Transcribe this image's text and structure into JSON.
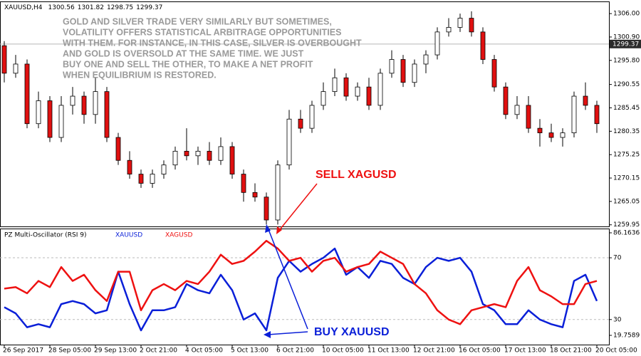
{
  "chart_data": [
    {
      "type": "candlestick",
      "symbol": "XAUUSD,H4",
      "ohlc_header": [
        1300.56,
        1301.82,
        1298.75,
        1299.37
      ],
      "current_price": 1299.37,
      "annotation_lines": [
        "GOLD AND SILVER TRADE VERY SIMILARLY BUT SOMETIMES,",
        "VOLATILITY OFFERS STATISTICAL ARBITRAGE OPPORTUNITIES",
        "WITH THEM. FOR INSTANCE, IN THIS CASE, SILVER IS OVERBOUGHT",
        "AND GOLD IS OVERSOLD AT THE SAME TIME. WE JUST",
        "BUY ONE AND SELL THE OTHER, TO MAKE A NET PROFIT",
        "WHEN EQUILIBRIUM IS RESTORED."
      ],
      "sell_label": "SELL XAGUSD",
      "buy_label": "BUY XAUUSD",
      "up_color": "#ffffff",
      "down_color": "#e01010",
      "categories": [
        "26 Sep 2017",
        null,
        null,
        null,
        "28 Sep 05:00",
        null,
        null,
        null,
        "29 Sep 13:00",
        null,
        null,
        null,
        "2 Oct 21:00",
        null,
        null,
        null,
        "4 Oct 05:00",
        null,
        null,
        null,
        "5 Oct 13:00",
        null,
        null,
        null,
        "6 Oct 21:00",
        null,
        null,
        null,
        "10 Oct 05:00",
        null,
        null,
        null,
        "11 Oct 13:00",
        null,
        null,
        null,
        "12 Oct 21:00",
        null,
        null,
        null,
        "16 Oct 05:00",
        null,
        null,
        null,
        "17 Oct 13:00",
        null,
        null,
        null,
        "18 Oct 21:00",
        null,
        null,
        null,
        "20 Oct 05:00"
      ],
      "open": [
        1299,
        1293,
        1295,
        1282,
        1287,
        1279,
        1286,
        1288,
        1284,
        1289,
        1279,
        1274,
        1271,
        1269,
        1271,
        1273,
        1276,
        1275,
        1276,
        1274,
        1277,
        1271,
        1267,
        1266,
        1261,
        1273,
        1283,
        1281,
        1286,
        1289,
        1292,
        1288,
        1290,
        1286,
        1293,
        1296,
        1291,
        1295,
        1297,
        1302,
        1303,
        1305,
        1302,
        1296,
        1290,
        1284,
        1286,
        1281,
        1280,
        1279,
        1280,
        1288,
        1286
      ],
      "high": [
        1300,
        1297,
        1296,
        1289,
        1288,
        1288,
        1290,
        1289,
        1292,
        1290,
        1280,
        1276,
        1272,
        1272,
        1274,
        1277,
        1281,
        1277,
        1278,
        1279,
        1278,
        1272,
        1269,
        1267,
        1274,
        1285,
        1285,
        1287,
        1291,
        1294,
        1293,
        1291,
        1292,
        1294,
        1298,
        1297,
        1296,
        1298,
        1303,
        1305,
        1306,
        1306.5,
        1303,
        1297,
        1291,
        1288,
        1288,
        1283,
        1282,
        1281,
        1289,
        1291,
        1287
      ],
      "low": [
        1291,
        1292,
        1281,
        1281,
        1278,
        1278,
        1284,
        1282,
        1282,
        1278,
        1273,
        1270,
        1268,
        1268,
        1270,
        1272,
        1274,
        1273,
        1273,
        1273,
        1270,
        1265,
        1265,
        1260,
        1260,
        1272,
        1280,
        1280,
        1285,
        1288,
        1287,
        1287,
        1285,
        1285,
        1292,
        1290,
        1290,
        1293,
        1296,
        1301,
        1302,
        1301,
        1295,
        1289,
        1283,
        1283,
        1280,
        1277,
        1278,
        1277,
        1279,
        1285,
        1280
      ],
      "close": [
        1293,
        1295,
        1282,
        1287,
        1279,
        1286,
        1288,
        1284,
        1289,
        1279,
        1274,
        1271,
        1269,
        1271,
        1273,
        1276,
        1275,
        1276,
        1274,
        1277,
        1271,
        1267,
        1266,
        1261,
        1273,
        1283,
        1281,
        1286,
        1289,
        1292,
        1288,
        1290,
        1286,
        1293,
        1296,
        1291,
        1295,
        1297,
        1302,
        1303,
        1305,
        1302,
        1296,
        1290,
        1284,
        1286,
        1281,
        1280,
        1279,
        1280,
        1288,
        1286,
        1282
      ],
      "ylim": [
        1259.6,
        1308.5
      ],
      "yticks": [
        {
          "value": 1306,
          "label": "1306.00"
        },
        {
          "value": 1300.9,
          "label": "1300.90"
        },
        {
          "value": 1295.8,
          "label": "1295.80"
        },
        1290.55,
        1285.45,
        1280.35,
        1275.25,
        1270.15,
        1265.05,
        1259.95
      ]
    },
    {
      "type": "line",
      "title": "PZ Multi-Oscillator (RSI 9)",
      "series": [
        {
          "name": "XAUUSD",
          "color": "#0a1fd8",
          "values": [
            38,
            34,
            25,
            27,
            25,
            40,
            42,
            40,
            34,
            36,
            61,
            40,
            23,
            36,
            36,
            38,
            53,
            49,
            47,
            59,
            49,
            30,
            34,
            23,
            57,
            68,
            61,
            66,
            70,
            76,
            59,
            64,
            57,
            68,
            66,
            57,
            53,
            64,
            70,
            68,
            70,
            61,
            40,
            36,
            27,
            27,
            36,
            30,
            27,
            25,
            55,
            59,
            42
          ]
        },
        {
          "name": "XAGUSD",
          "color": "#ee1111",
          "values": [
            50,
            51,
            47,
            55,
            51,
            64,
            55,
            59,
            49,
            42,
            61,
            61,
            36,
            49,
            53,
            49,
            55,
            53,
            61,
            72,
            66,
            68,
            74,
            81,
            76,
            68,
            70,
            61,
            68,
            70,
            61,
            64,
            66,
            74,
            70,
            66,
            53,
            47,
            36,
            30,
            27,
            36,
            38,
            40,
            38,
            55,
            64,
            49,
            45,
            40,
            40,
            53,
            55
          ]
        }
      ],
      "ylim": [
        19.7589,
        86.1636
      ],
      "yticks": [
        86.1636,
        70,
        30,
        19.7589
      ]
    }
  ]
}
